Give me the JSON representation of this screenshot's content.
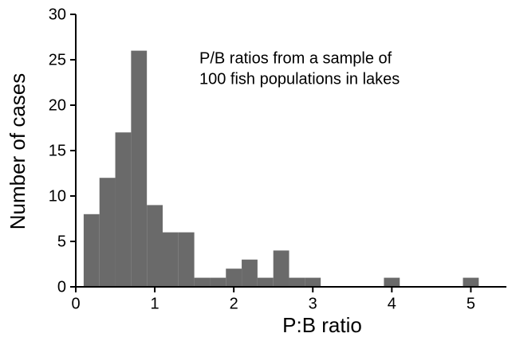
{
  "chart_data": {
    "type": "histogram",
    "xlabel": "P:B ratio",
    "ylabel": "Number of cases",
    "annotation": [
      "P/B ratios from a sample of",
      "100 fish populations in lakes"
    ],
    "bins": [
      0.1,
      0.3,
      0.5,
      0.7,
      0.9,
      1.1,
      1.3,
      1.5,
      1.7,
      1.9,
      2.1,
      2.3,
      2.5,
      2.7,
      2.9,
      3.1,
      3.3,
      3.5,
      3.7,
      3.9,
      4.1,
      4.3,
      4.5,
      4.7,
      4.9,
      5.1
    ],
    "values": [
      8,
      12,
      17,
      26,
      9,
      6,
      6,
      1,
      1,
      2,
      3,
      1,
      4,
      1,
      1,
      0,
      0,
      0,
      0,
      1,
      0,
      0,
      0,
      0,
      1
    ],
    "color": "#6a6a6a",
    "xlim": [
      0,
      5.45
    ],
    "xticks": [
      0,
      1,
      2,
      3,
      4,
      5
    ],
    "ylim": [
      0,
      30
    ],
    "yticks": [
      0,
      5,
      10,
      15,
      20,
      25,
      30
    ]
  }
}
